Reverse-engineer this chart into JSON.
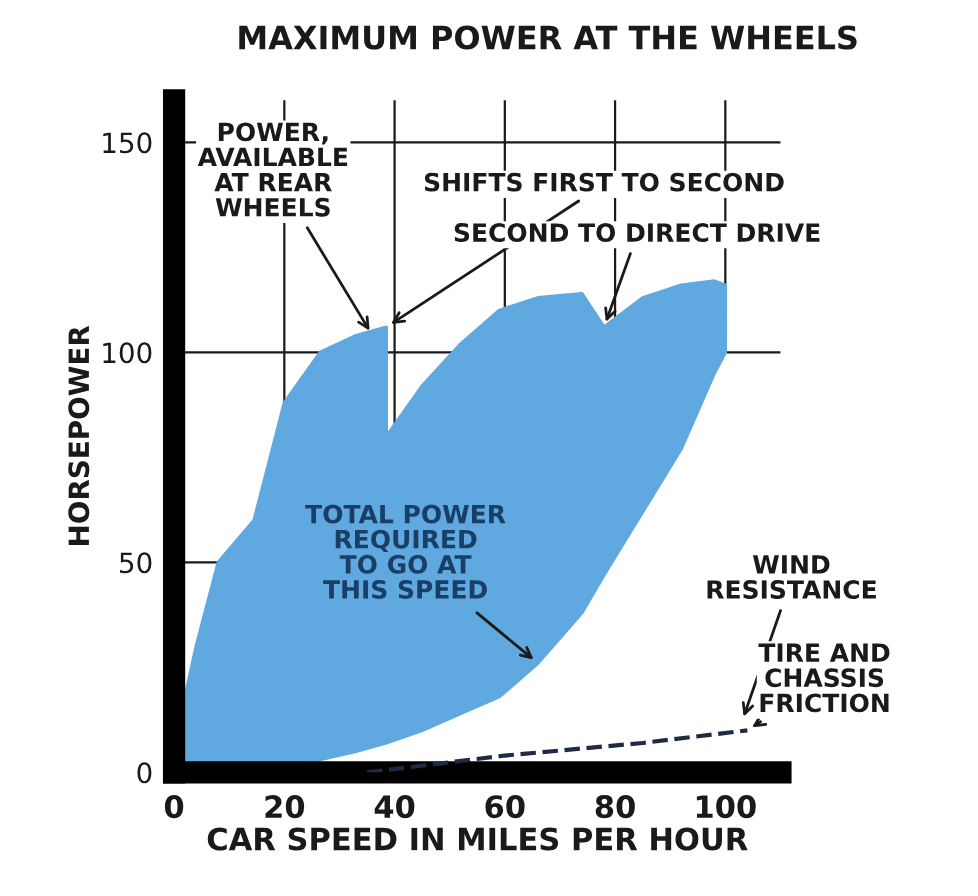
{
  "chart_data": {
    "type": "area",
    "stacked": true,
    "title": "MAXIMUM POWER AT THE WHEELS",
    "xlabel": "CAR SPEED IN MILES PER HOUR",
    "ylabel": "HORSEPOWER",
    "xlim": [
      0,
      110
    ],
    "ylim": [
      0,
      160
    ],
    "xticks": [
      0,
      20,
      40,
      60,
      80,
      100
    ],
    "yticks": [
      0,
      50,
      100,
      150
    ],
    "grid": true,
    "x": [
      0,
      1,
      4,
      8,
      14.5,
      20,
      26.5,
      33,
      38.5,
      38.5,
      45,
      52,
      59,
      66,
      74,
      78,
      85,
      92,
      98,
      100
    ],
    "series": [
      {
        "color": "#ffffff",
        "values": [
          0,
          0,
          0.2,
          0.5,
          1,
          1.5,
          3,
          5,
          7,
          7,
          10,
          14,
          18,
          26,
          38,
          47,
          62,
          77,
          95,
          100
        ]
      },
      {
        "color": "#5fa8e0",
        "values": [
          0,
          12,
          29.8,
          49.5,
          59,
          86.5,
          97,
          99,
          99,
          73,
          82,
          88,
          92,
          87,
          76,
          59,
          51,
          39,
          22,
          16
        ]
      },
      {
        "type": "line",
        "color": "#1f2a44",
        "line_style": "dashed",
        "x": [
          35,
          60,
          85,
          104
        ],
        "values": [
          0,
          4,
          7,
          10
        ]
      }
    ],
    "annotations": [
      {
        "text": "POWER,\nAVAILABLE\nAT REAR\nWHEELS",
        "x": 36,
        "y": 104
      },
      {
        "text": "SHIFTS FIRST TO SECOND",
        "x": 38.5,
        "y": 106
      },
      {
        "text": "SECOND TO DIRECT DRIVE",
        "x": 78,
        "y": 106
      },
      {
        "text": "TOTAL POWER\nREQUIRED\nTO GO AT\nTHIS SPEED",
        "x": 66,
        "y": 26
      },
      {
        "text": "WIND\nRESISTANCE",
        "x": 103,
        "y": 12
      },
      {
        "text": "TIRE AND\nCHASSIS\nFRICTION",
        "x": 104,
        "y": 10
      }
    ]
  }
}
